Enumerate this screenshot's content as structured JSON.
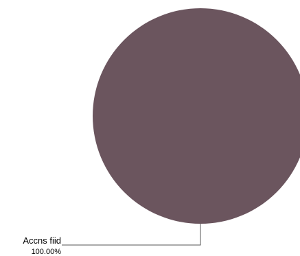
{
  "chart_data": {
    "type": "pie",
    "slices": [
      {
        "label": "Accns fiid",
        "value": 100.0,
        "percent_label": "100.00%",
        "color": "#6b555e"
      }
    ]
  }
}
